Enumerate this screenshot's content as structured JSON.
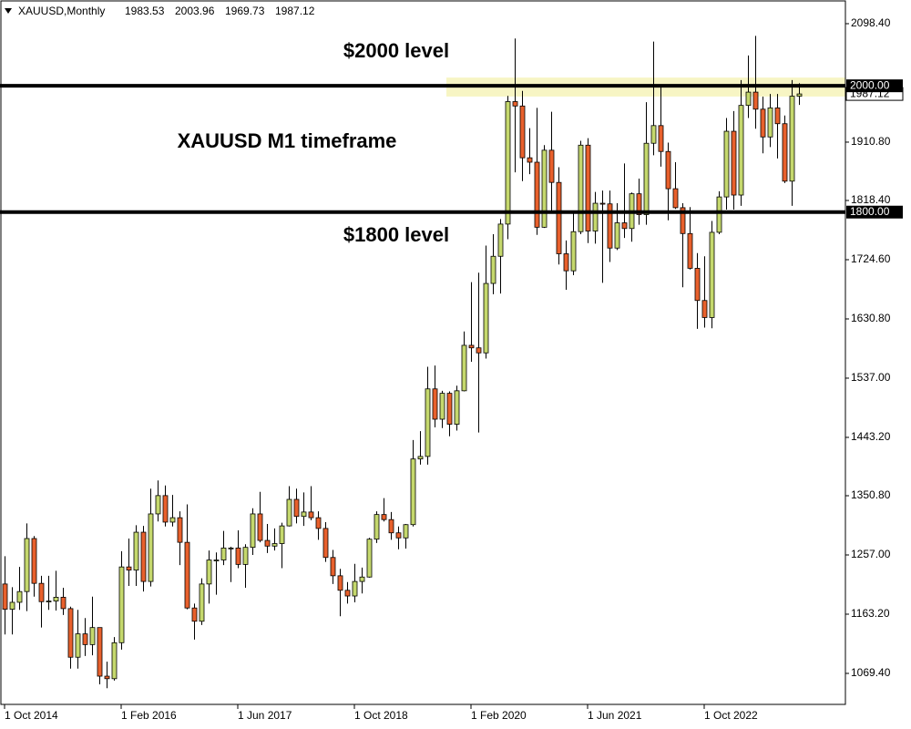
{
  "chart_data": {
    "type": "candlestick",
    "symbol": "XAUUSD,Monthly",
    "annotations": [
      "$2000 level",
      "XAUUSD M1 timeframe",
      "$1800 level"
    ],
    "categories": [
      "1 Oct 2014",
      null,
      null,
      null,
      null,
      null,
      null,
      null,
      null,
      null,
      null,
      null,
      null,
      null,
      null,
      null,
      "1 Feb 2016",
      null,
      null,
      null,
      null,
      null,
      null,
      null,
      null,
      null,
      null,
      null,
      null,
      null,
      null,
      null,
      "1 Jun 2017",
      null,
      null,
      null,
      null,
      null,
      null,
      null,
      null,
      null,
      null,
      null,
      null,
      null,
      null,
      null,
      "1 Oct 2018",
      null,
      null,
      null,
      null,
      null,
      null,
      null,
      null,
      null,
      null,
      null,
      null,
      null,
      null,
      null,
      "1 Feb 2020",
      null,
      null,
      null,
      null,
      null,
      null,
      null,
      null,
      null,
      null,
      null,
      null,
      null,
      null,
      null,
      "1 Jun 2021",
      null,
      null,
      null,
      null,
      null,
      null,
      null,
      null,
      null,
      null,
      null,
      null,
      null,
      null,
      null,
      "1 Oct 2022",
      null,
      null,
      null,
      null,
      null,
      null,
      null,
      null,
      null,
      null,
      null,
      null,
      null
    ],
    "open": [
      1211,
      1171,
      1182,
      1199,
      1283,
      1212,
      1183,
      1184,
      1190,
      1172,
      1095,
      1132,
      1115,
      1142,
      1065,
      1061,
      1118,
      1238,
      1233,
      1293,
      1215,
      1322,
      1351,
      1309,
      1316,
      1277,
      1173,
      1152,
      1211,
      1249,
      1249,
      1268,
      1268,
      1242,
      1269,
      1322,
      1280,
      1271,
      1275,
      1303,
      1345,
      1318,
      1325,
      1316,
      1299,
      1253,
      1224,
      1201,
      1192,
      1215,
      1222,
      1282,
      1321,
      1313,
      1292,
      1284,
      1305,
      1409,
      1413,
      1520,
      1472,
      1513,
      1464,
      1517,
      1589,
      1585,
      1577,
      1687,
      1730,
      1781,
      1975,
      1968,
      1886,
      1879,
      1776,
      1898,
      1847,
      1734,
      1707,
      1769,
      1906,
      1770,
      1814,
      1813,
      1743,
      1783,
      1774,
      1829,
      1796,
      1909,
      1937,
      1896,
      1837,
      1807,
      1766,
      1711,
      1660,
      1633,
      1768,
      1824,
      1928,
      1827,
      1969,
      1990,
      1963,
      1919,
      1965,
      1940,
      1849,
      1983.53
    ],
    "high": [
      1255,
      1206,
      1238,
      1307,
      1287,
      1224,
      1224,
      1232,
      1205,
      1175,
      1170,
      1157,
      1191,
      1142,
      1088,
      1127,
      1263,
      1283,
      1304,
      1303,
      1362,
      1375,
      1367,
      1352,
      1326,
      1337,
      1180,
      1220,
      1264,
      1261,
      1295,
      1270,
      1296,
      1274,
      1331,
      1357,
      1306,
      1299,
      1308,
      1366,
      1362,
      1356,
      1366,
      1326,
      1309,
      1265,
      1235,
      1214,
      1243,
      1237,
      1284,
      1326,
      1347,
      1325,
      1302,
      1306,
      1439,
      1453,
      1555,
      1557,
      1517,
      1516,
      1525,
      1611,
      1689,
      1704,
      1747,
      1765,
      1789,
      1984,
      2075,
      1992,
      1933,
      1965,
      1906,
      1959,
      1871,
      1755,
      1798,
      1913,
      1917,
      1832,
      1834,
      1834,
      1814,
      1877,
      1831,
      1853,
      1974,
      2070,
      1998,
      1910,
      1879,
      1814,
      1808,
      1735,
      1730,
      1786,
      1833,
      1949,
      1960,
      2009,
      2048,
      2079,
      1983,
      1987,
      1987,
      1953,
      2009,
      2003.96
    ],
    "low": [
      1131,
      1131,
      1170,
      1168,
      1191,
      1142,
      1170,
      1169,
      1162,
      1077,
      1077,
      1097,
      1098,
      1052,
      1046,
      1058,
      1107,
      1208,
      1208,
      1199,
      1207,
      1310,
      1302,
      1302,
      1241,
      1171,
      1123,
      1146,
      1180,
      1194,
      1241,
      1214,
      1236,
      1205,
      1257,
      1277,
      1260,
      1264,
      1236,
      1302,
      1307,
      1303,
      1312,
      1281,
      1246,
      1211,
      1160,
      1180,
      1182,
      1196,
      1221,
      1276,
      1310,
      1281,
      1266,
      1267,
      1302,
      1400,
      1400,
      1459,
      1458,
      1445,
      1454,
      1516,
      1563,
      1451,
      1568,
      1670,
      1671,
      1757,
      1863,
      1849,
      1860,
      1764,
      1775,
      1802,
      1717,
      1677,
      1700,
      1765,
      1751,
      1750,
      1688,
      1721,
      1740,
      1759,
      1753,
      1780,
      1780,
      1890,
      1872,
      1787,
      1805,
      1681,
      1709,
      1615,
      1617,
      1616,
      1765,
      1804,
      1804,
      1810,
      1949,
      1932,
      1893,
      1903,
      1885,
      1846,
      1810,
      1969.73
    ],
    "close": [
      1171,
      1182,
      1199,
      1283,
      1212,
      1183,
      1184,
      1190,
      1172,
      1095,
      1132,
      1115,
      1142,
      1065,
      1061,
      1118,
      1238,
      1233,
      1293,
      1215,
      1322,
      1351,
      1309,
      1316,
      1277,
      1173,
      1152,
      1211,
      1249,
      1249,
      1268,
      1268,
      1242,
      1269,
      1322,
      1280,
      1271,
      1275,
      1303,
      1345,
      1318,
      1325,
      1316,
      1299,
      1253,
      1224,
      1201,
      1192,
      1215,
      1222,
      1282,
      1321,
      1313,
      1292,
      1284,
      1305,
      1409,
      1413,
      1520,
      1472,
      1513,
      1464,
      1517,
      1589,
      1585,
      1577,
      1687,
      1730,
      1781,
      1975,
      1968,
      1886,
      1879,
      1776,
      1898,
      1847,
      1734,
      1707,
      1769,
      1906,
      1770,
      1814,
      1813,
      1743,
      1783,
      1774,
      1829,
      1796,
      1909,
      1937,
      1896,
      1837,
      1807,
      1766,
      1711,
      1660,
      1633,
      1768,
      1824,
      1928,
      1827,
      1969,
      1990,
      1963,
      1919,
      1965,
      1940,
      1849,
      1983.53,
      1987.12
    ],
    "up_color": "#c5d86d",
    "down_color": "#e8602c",
    "ylim": [
      1020.3,
      2135.9
    ],
    "yticks": [
      {
        "value": 2098.4,
        "label": "2098.40"
      },
      {
        "value": 1910.8,
        "label": "1910.80"
      },
      {
        "value": 1818.4,
        "label": "1818.40"
      },
      {
        "value": 1724.6,
        "label": "1724.60"
      },
      {
        "value": 1630.8,
        "label": "1630.80"
      },
      {
        "value": 1537,
        "label": "1537.00"
      },
      {
        "value": 1443.2,
        "label": "1443.20"
      },
      {
        "value": 1350.8,
        "label": "1350.80"
      },
      {
        "value": 1257,
        "label": "1257.00"
      },
      {
        "value": 1163.2,
        "label": "1163.20"
      },
      {
        "value": 1069.4,
        "label": "1069.40"
      }
    ],
    "hlines": [
      {
        "value": 2000,
        "label": "2000.00"
      },
      {
        "value": 1800,
        "label": "1800.00"
      }
    ],
    "zone": [
      1983,
      2013
    ],
    "zone_color": "#f7f5c4"
  }
}
